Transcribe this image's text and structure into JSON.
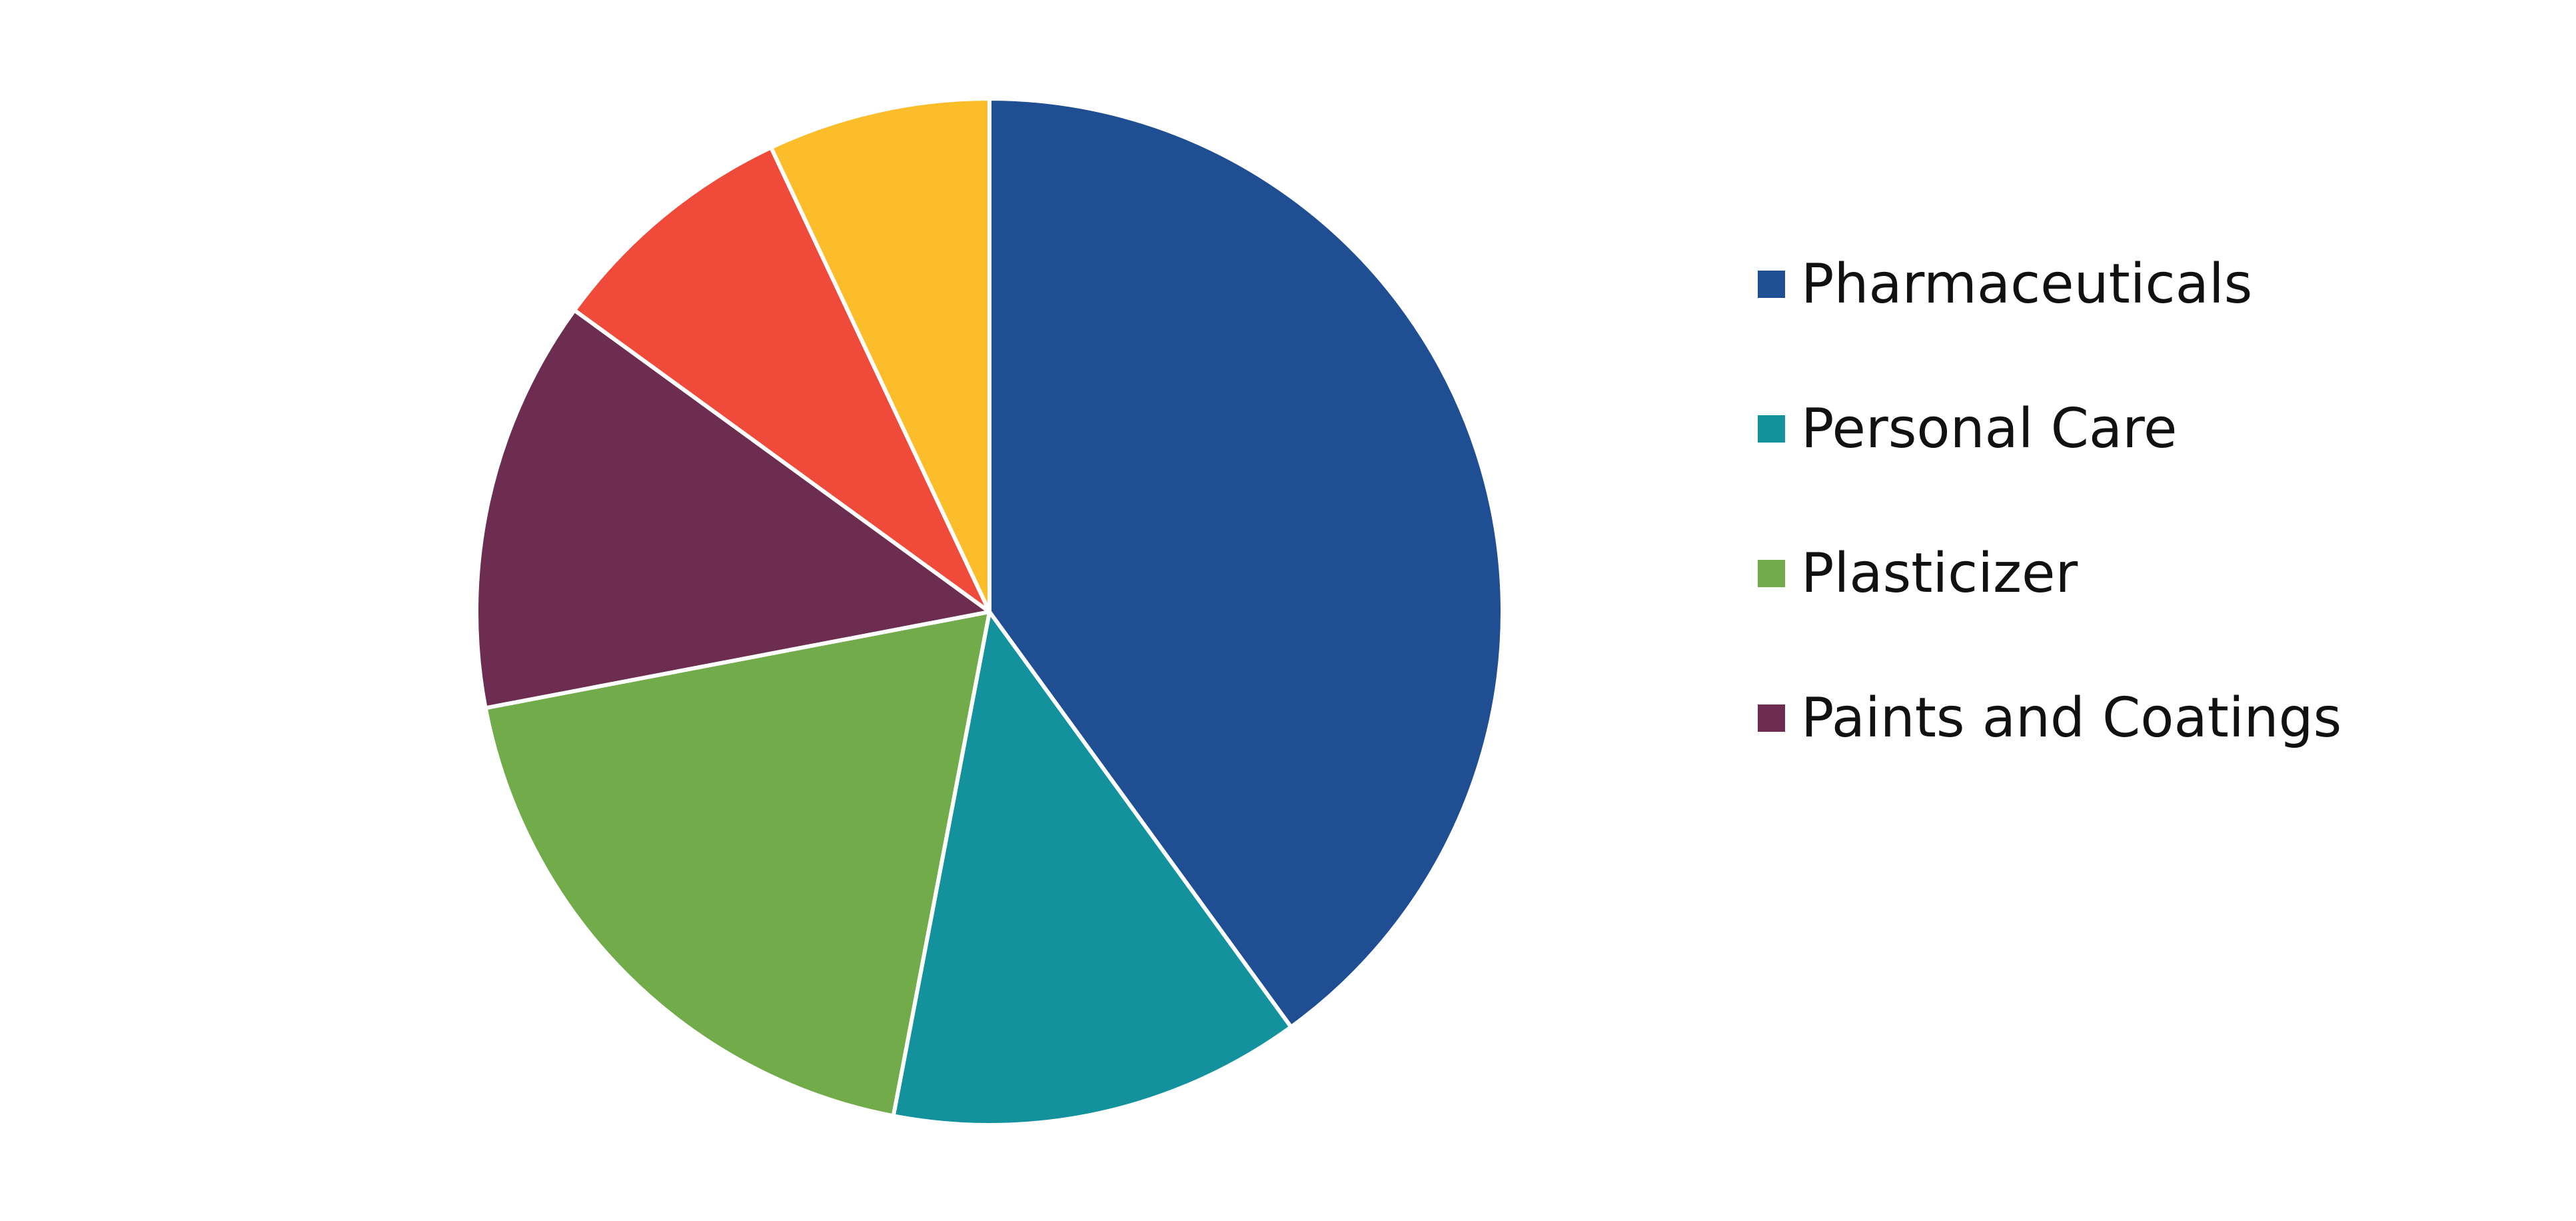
{
  "chart_data": {
    "type": "pie",
    "slices": [
      {
        "label": "Pharmaceuticals",
        "value": 40,
        "color": "#1f4e92",
        "legend": true
      },
      {
        "label": "Personal Care",
        "value": 13,
        "color": "#13929e",
        "legend": true
      },
      {
        "label": "Plasticizer",
        "value": 19,
        "color": "#72ab49",
        "legend": true
      },
      {
        "label": "Paints and Coatings",
        "value": 13,
        "color": "#6c2d51",
        "legend": true
      },
      {
        "label": "",
        "value": 8,
        "color": "#ef4a3a",
        "legend": false
      },
      {
        "label": "",
        "value": 7,
        "color": "#fbbd2a",
        "legend": false
      }
    ],
    "legend_position": "right",
    "start_angle_deg": 0,
    "direction": "clockwise"
  }
}
